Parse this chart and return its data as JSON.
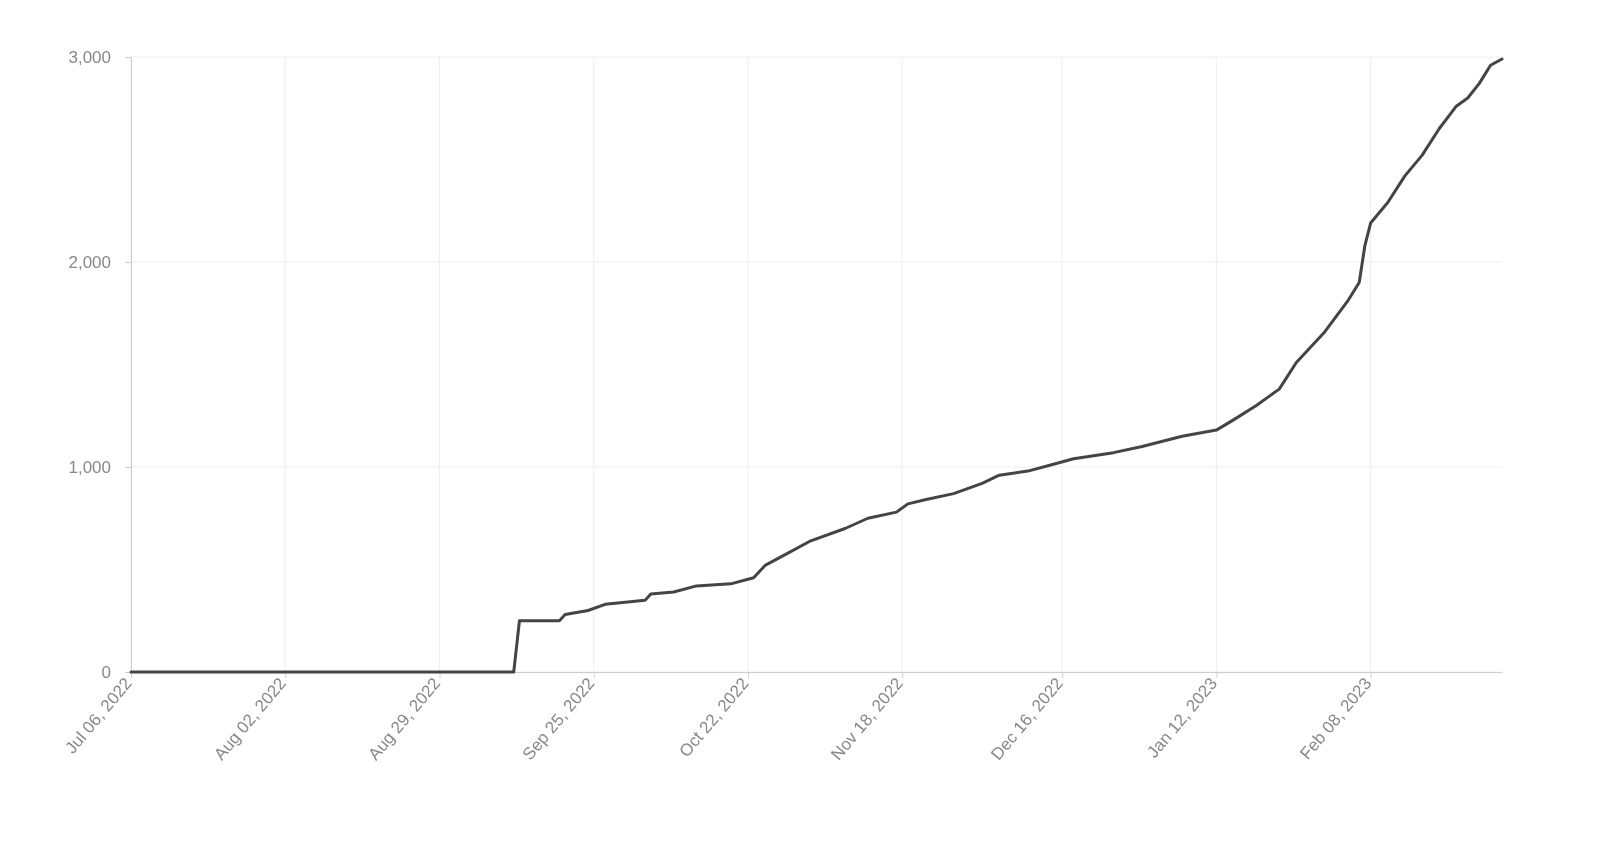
{
  "chart_data": {
    "type": "line",
    "x": [
      "2022-07-06",
      "2022-09-05",
      "2022-09-11",
      "2022-09-12",
      "2022-09-19",
      "2022-09-20",
      "2022-09-24",
      "2022-09-27",
      "2022-10-04",
      "2022-10-05",
      "2022-10-09",
      "2022-10-13",
      "2022-10-19",
      "2022-10-23",
      "2022-10-25",
      "2022-10-29",
      "2022-11-02",
      "2022-11-08",
      "2022-11-12",
      "2022-11-17",
      "2022-11-19",
      "2022-11-22",
      "2022-11-27",
      "2022-12-02",
      "2022-12-05",
      "2022-12-10",
      "2022-12-14",
      "2022-12-18",
      "2022-12-25",
      "2022-12-30",
      "2023-01-06",
      "2023-01-12",
      "2023-01-15",
      "2023-01-19",
      "2023-01-23",
      "2023-01-26",
      "2023-01-31",
      "2023-02-04",
      "2023-02-06",
      "2023-02-07",
      "2023-02-08",
      "2023-02-11",
      "2023-02-14",
      "2023-02-17",
      "2023-02-20",
      "2023-02-23",
      "2023-02-25",
      "2023-02-27",
      "2023-03-01",
      "2023-03-03"
    ],
    "series": [
      {
        "color": "#444444",
        "values": [
          0,
          0,
          0,
          250,
          250,
          280,
          300,
          330,
          350,
          380,
          390,
          420,
          430,
          460,
          520,
          580,
          640,
          700,
          750,
          780,
          820,
          840,
          870,
          920,
          960,
          980,
          1010,
          1040,
          1070,
          1100,
          1150,
          1180,
          1230,
          1300,
          1380,
          1510,
          1660,
          1810,
          1900,
          2080,
          2190,
          2290,
          2420,
          2520,
          2650,
          2760,
          2800,
          2870,
          2960,
          2990
        ]
      }
    ],
    "xlim": [
      "2022-07-06",
      "2023-03-03"
    ],
    "xticks": [
      {
        "value": "2022-07-06",
        "label": "Jul 06, 2022"
      },
      {
        "value": "2022-08-02",
        "label": "Aug 02, 2022"
      },
      {
        "value": "2022-08-29",
        "label": "Aug 29, 2022"
      },
      {
        "value": "2022-09-25",
        "label": "Sep 25, 2022"
      },
      {
        "value": "2022-10-22",
        "label": "Oct 22, 2022"
      },
      {
        "value": "2022-11-18",
        "label": "Nov 18, 2022"
      },
      {
        "value": "2022-12-16",
        "label": "Dec 16, 2022"
      },
      {
        "value": "2023-01-12",
        "label": "Jan 12, 2023"
      },
      {
        "value": "2023-02-08",
        "label": "Feb 08, 2023"
      }
    ],
    "ylim": [
      0,
      3000
    ],
    "yticks": [
      {
        "value": 0,
        "label": "0"
      },
      {
        "value": 1000,
        "label": "1,000"
      },
      {
        "value": 2000,
        "label": "2,000"
      },
      {
        "value": 3000,
        "label": "3,000"
      }
    ],
    "grid": true,
    "marker": "none",
    "line_style": "solid"
  }
}
